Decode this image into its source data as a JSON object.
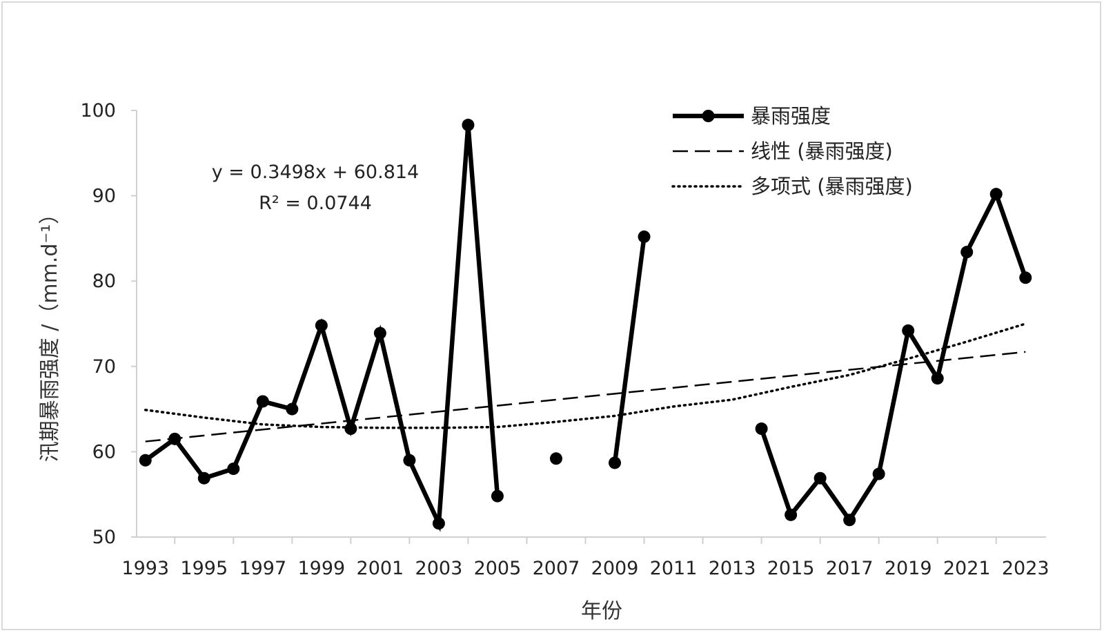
{
  "chart_data": {
    "type": "line",
    "xlabel": "年份",
    "ylabel": "汛期暴雨强度 /（mm.d⁻¹）",
    "ylim": [
      50,
      100
    ],
    "yticks": [
      50,
      60,
      70,
      80,
      90,
      100
    ],
    "xlim": [
      1992.7,
      2023.7
    ],
    "xtick_labels": [
      "1993",
      "1995",
      "1997",
      "1999",
      "2001",
      "2003",
      "2005",
      "2007",
      "2009",
      "2011",
      "2013",
      "2015",
      "2017",
      "2019",
      "2021",
      "2023"
    ],
    "grid": false,
    "legend_position": "top-right",
    "annotation": [
      "y = 0.3498x + 60.814",
      "R² = 0.0744"
    ],
    "series": [
      {
        "name": "暴雨强度",
        "style": "solid-with-markers",
        "color": "#000000",
        "x": [
          1993,
          1994,
          1995,
          1996,
          1997,
          1998,
          1999,
          2000,
          2001,
          2002,
          2003,
          2004,
          2005,
          2006,
          2007,
          2008,
          2009,
          2010,
          2011,
          2012,
          2013,
          2014,
          2015,
          2016,
          2017,
          2018,
          2019,
          2020,
          2021,
          2022,
          2023
        ],
        "values": [
          59.0,
          61.5,
          56.9,
          58.0,
          65.9,
          65.0,
          74.8,
          62.7,
          73.9,
          59.0,
          51.6,
          98.3,
          54.8,
          null,
          59.2,
          null,
          58.7,
          85.2,
          null,
          null,
          null,
          62.7,
          52.6,
          56.9,
          52.0,
          57.4,
          74.2,
          68.6,
          83.4,
          90.2,
          80.4
        ]
      },
      {
        "name": "线性 (暴雨强度)",
        "style": "dashed",
        "color": "#000000",
        "x": [
          1993,
          2023
        ],
        "values": [
          61.2,
          71.7
        ]
      },
      {
        "name": "多项式 (暴雨强度)",
        "style": "dotted",
        "color": "#000000",
        "x": [
          1993,
          1995,
          1997,
          1999,
          2001,
          2003,
          2005,
          2007,
          2009,
          2011,
          2013,
          2015,
          2017,
          2019,
          2021,
          2023
        ],
        "values": [
          64.9,
          64.0,
          63.2,
          62.9,
          62.8,
          62.8,
          62.9,
          63.5,
          64.2,
          65.3,
          66.1,
          67.6,
          69.0,
          70.9,
          72.9,
          75.0
        ]
      }
    ]
  }
}
